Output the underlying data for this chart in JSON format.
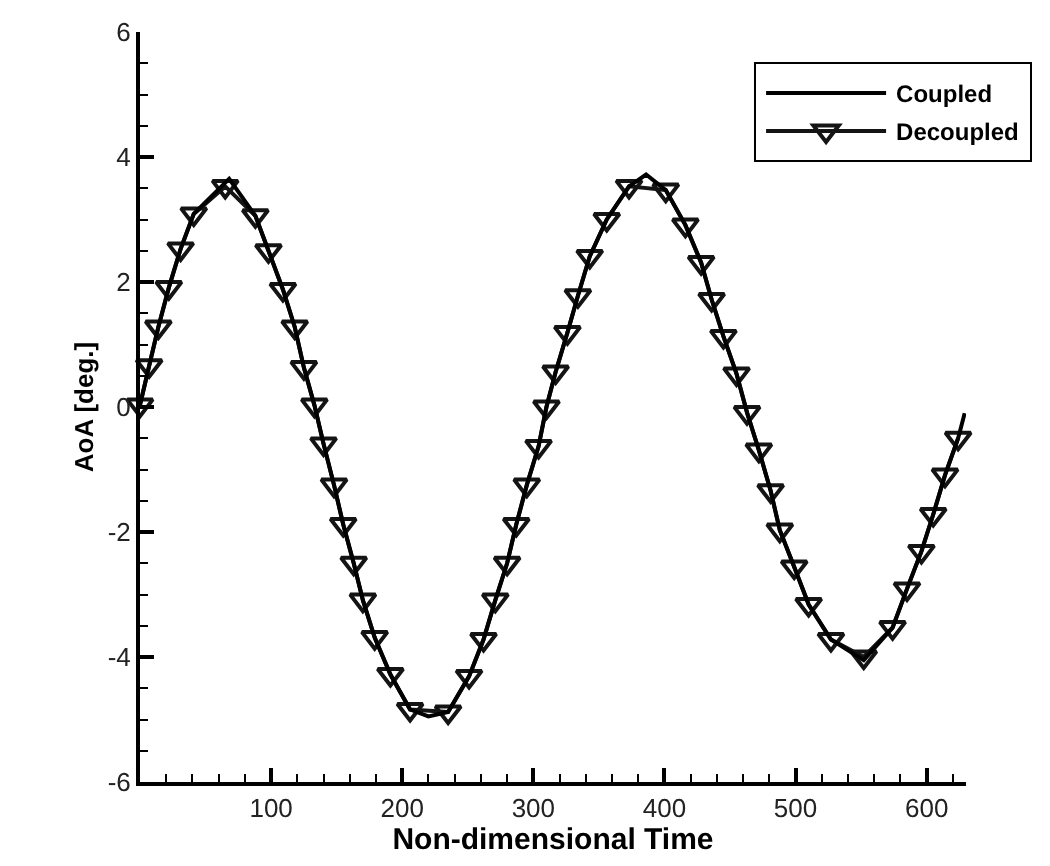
{
  "chart_data": {
    "type": "line",
    "xlabel": "Non-dimensional Time",
    "ylabel": "AoA [deg.]",
    "xlim": [
      0,
      630
    ],
    "xticks": [
      100,
      200,
      300,
      400,
      500,
      600
    ],
    "ylim": [
      -6,
      6
    ],
    "yticks": [
      -6,
      -4,
      -2,
      0,
      2,
      4,
      6
    ],
    "legend": "top right",
    "line_style": "solid",
    "series": [
      {
        "name": "Coupled",
        "color": "#000000",
        "marker": "none",
        "x": [
          0,
          7,
          14,
          22,
          31,
          41,
          68,
          88,
          98,
          109,
          118,
          125,
          133,
          140,
          148,
          155,
          163,
          170,
          179,
          191,
          206,
          220,
          235,
          251,
          262,
          271,
          280,
          287,
          295,
          304,
          310,
          317,
          326,
          334,
          343,
          356,
          373,
          386,
          401,
          416,
          428,
          436,
          445,
          455,
          463,
          472,
          481,
          488,
          499,
          510,
          527,
          552,
          574,
          585,
          596,
          605,
          614,
          624,
          629
        ],
        "values": [
          0.03,
          0.66,
          1.28,
          1.91,
          2.53,
          3.09,
          3.65,
          3.06,
          2.5,
          1.88,
          1.28,
          0.63,
          0.03,
          -0.59,
          -1.25,
          -1.88,
          -2.5,
          -3.09,
          -3.69,
          -4.28,
          -4.84,
          -4.95,
          -4.88,
          -4.31,
          -3.72,
          -3.09,
          -2.5,
          -1.88,
          -1.25,
          -0.63,
          0,
          0.56,
          1.19,
          1.78,
          2.41,
          3.0,
          3.53,
          3.72,
          3.47,
          2.91,
          2.31,
          1.72,
          1.13,
          0.53,
          -0.09,
          -0.69,
          -1.34,
          -1.97,
          -2.56,
          -3.16,
          -3.72,
          -4.05,
          -3.53,
          -2.91,
          -2.31,
          -1.72,
          -1.09,
          -0.5,
          -0.1
        ]
      },
      {
        "name": "Decoupled",
        "color": "#141414",
        "marker": "triangle",
        "x": [
          0,
          7,
          14,
          22,
          31,
          41,
          65,
          88,
          98,
          109,
          118,
          125,
          133,
          140,
          148,
          155,
          163,
          170,
          179,
          191,
          206,
          235,
          251,
          262,
          271,
          280,
          287,
          295,
          304,
          310,
          317,
          326,
          334,
          343,
          356,
          373,
          401,
          416,
          428,
          436,
          445,
          455,
          463,
          472,
          481,
          488,
          499,
          510,
          527,
          552,
          574,
          585,
          596,
          605,
          614,
          624
        ],
        "values": [
          0.03,
          0.66,
          1.28,
          1.91,
          2.53,
          3.09,
          3.53,
          3.06,
          2.5,
          1.88,
          1.28,
          0.63,
          0.03,
          -0.59,
          -1.25,
          -1.88,
          -2.5,
          -3.09,
          -3.69,
          -4.28,
          -4.84,
          -4.88,
          -4.31,
          -3.72,
          -3.09,
          -2.5,
          -1.88,
          -1.25,
          -0.63,
          0,
          0.56,
          1.19,
          1.78,
          2.41,
          3.0,
          3.53,
          3.47,
          2.91,
          2.31,
          1.72,
          1.13,
          0.53,
          -0.09,
          -0.69,
          -1.34,
          -1.97,
          -2.56,
          -3.16,
          -3.72,
          -4.0,
          -3.53,
          -2.91,
          -2.31,
          -1.72,
          -1.09,
          -0.5
        ]
      }
    ]
  }
}
